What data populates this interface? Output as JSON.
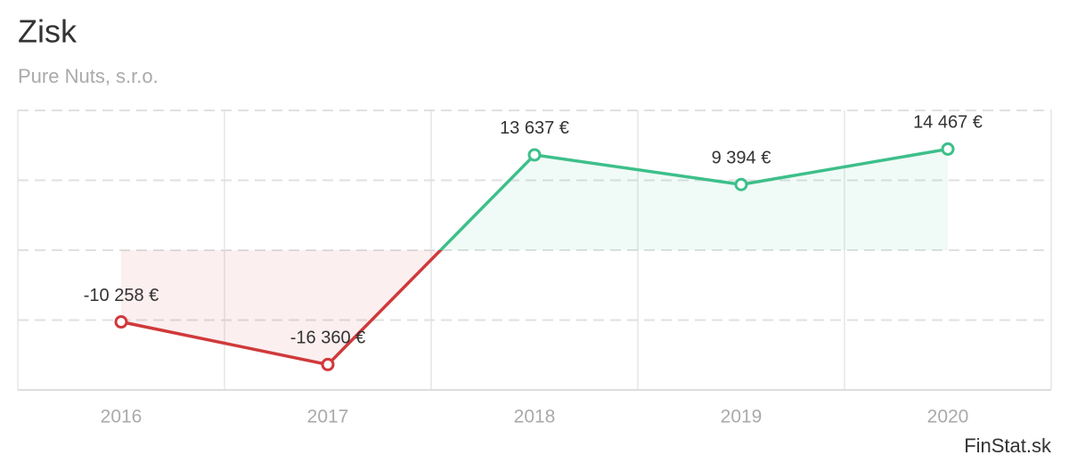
{
  "chart_data": {
    "type": "line",
    "title": "Zisk",
    "subtitle": "Pure Nuts, s.r.o.",
    "categories": [
      "2016",
      "2017",
      "2018",
      "2019",
      "2020"
    ],
    "values": [
      -10258,
      -16360,
      13637,
      9394,
      14467
    ],
    "value_labels": [
      "-10 258 €",
      "-16 360 €",
      "13 637 €",
      "9 394 €",
      "14 467 €"
    ],
    "positive_color": "#3dbf8a",
    "negative_color": "#d0393a",
    "ylim": [
      -20000,
      20000
    ],
    "yticks": [
      -20000,
      -10000,
      0,
      10000,
      20000
    ],
    "grid": true,
    "source": "FinStat.sk"
  }
}
